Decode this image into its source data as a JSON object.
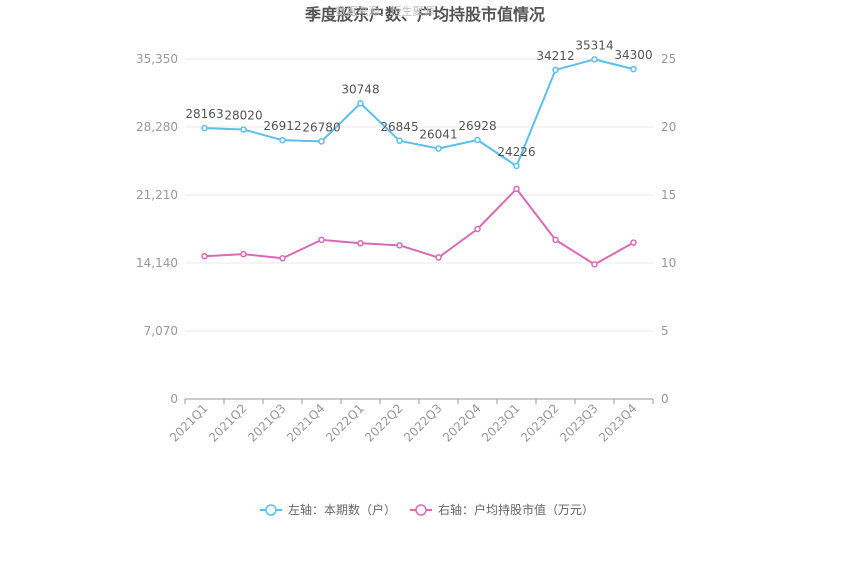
{
  "chart_data": {
    "type": "line",
    "title": "季度股东户数、户均持股市值情况",
    "watermark": "数据来源：恒生聚源",
    "categories": [
      "2021Q1",
      "2021Q2",
      "2021Q3",
      "2021Q4",
      "2022Q1",
      "2022Q2",
      "2022Q3",
      "2022Q4",
      "2023Q1",
      "2023Q2",
      "2023Q3",
      "2023Q4"
    ],
    "left_axis": {
      "ylim": [
        0,
        35350
      ],
      "ticks": [
        "0",
        "7,070",
        "14,140",
        "21,210",
        "28,280",
        "35,350"
      ]
    },
    "right_axis": {
      "ylim": [
        0,
        25
      ],
      "ticks": [
        "0",
        "5",
        "10",
        "15",
        "20",
        "25"
      ]
    },
    "series": [
      {
        "name": "左轴：本期数（户）",
        "axis": "left",
        "color": "#5bc0eb",
        "values": [
          28163,
          28020,
          26912,
          26780,
          30748,
          26845,
          26041,
          26928,
          24226,
          34212,
          35314,
          34300
        ],
        "labels": [
          "28163",
          "28020",
          "26912",
          "26780",
          "30748",
          "26845",
          "26041",
          "26928",
          "24226",
          "34212",
          "35314",
          "34300"
        ]
      },
      {
        "name": "右轴：户均持股市值（万元）",
        "axis": "right",
        "color": "#d96bb5",
        "values": [
          10.5,
          10.65,
          10.35,
          11.7,
          11.45,
          11.3,
          10.4,
          12.5,
          15.45,
          11.7,
          9.9,
          11.5
        ]
      }
    ],
    "grid": true,
    "legend_position": "bottom"
  }
}
